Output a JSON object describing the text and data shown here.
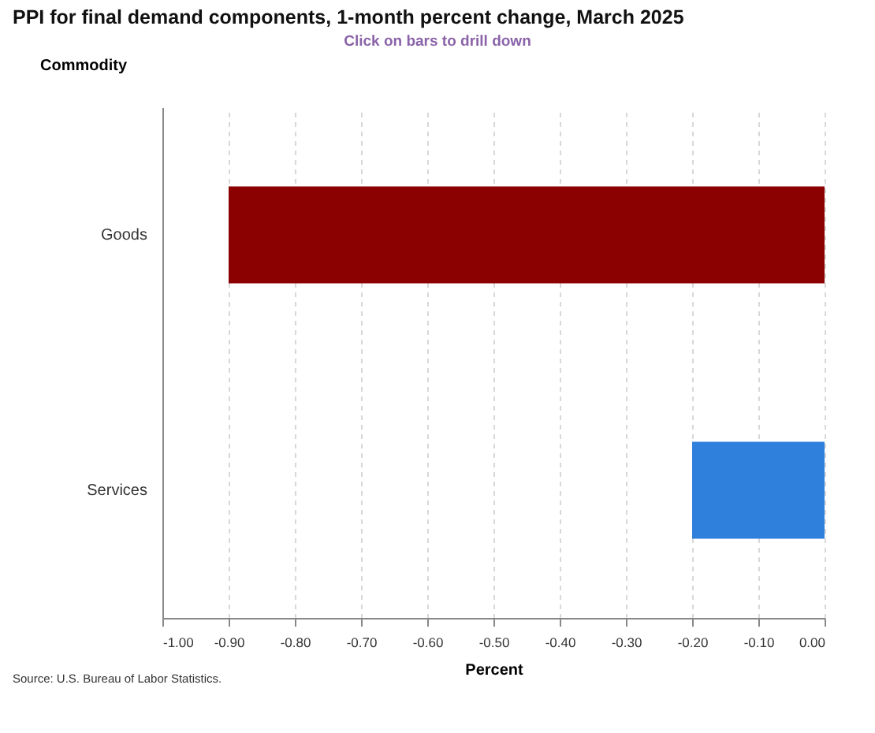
{
  "chart_data": {
    "type": "bar",
    "orientation": "horizontal",
    "title": "PPI for final demand components, 1-month percent change, March 2025",
    "subtitle": "Click on bars to drill down",
    "ylabel": "Commodity",
    "xlabel": "Percent",
    "categories": [
      "Goods",
      "Services"
    ],
    "values": [
      -0.9,
      -0.2
    ],
    "colors": [
      "#8b0000",
      "#2f80dc"
    ],
    "xlim": [
      -1,
      0
    ],
    "xticks": [
      {
        "value": -1,
        "label": "-1.00"
      },
      {
        "value": -0.9,
        "label": "-0.90"
      },
      {
        "value": -0.8,
        "label": "-0.80"
      },
      {
        "value": -0.7,
        "label": "-0.70"
      },
      {
        "value": -0.6,
        "label": "-0.60"
      },
      {
        "value": -0.5,
        "label": "-0.50"
      },
      {
        "value": -0.4,
        "label": "-0.40"
      },
      {
        "value": -0.3,
        "label": "-0.30"
      },
      {
        "value": -0.2,
        "label": "-0.20"
      },
      {
        "value": -0.1,
        "label": "-0.10"
      },
      {
        "value": 0,
        "label": "0.00"
      }
    ],
    "grid": "x",
    "annotations": [
      "Source: U.S. Bureau of Labor Statistics."
    ]
  }
}
